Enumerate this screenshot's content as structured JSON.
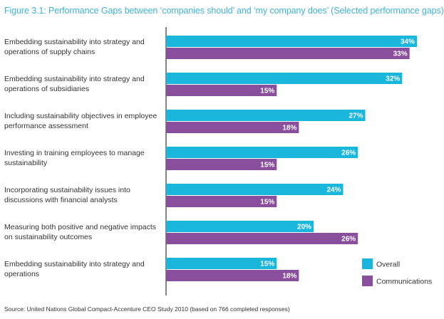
{
  "title": "Figure 3.1: Performance Gaps between ‘companies should’ and ‘my company does’ (Selected performance gaps)",
  "source": "Source: United Nations Global Compact-Accenture CEO Study 2010 (based on 766 completed responses)",
  "colors": {
    "overall": "#1bb6dc",
    "communications": "#8a4f9c",
    "title": "#3fb3d6",
    "axis": "#333333"
  },
  "chart_data": {
    "type": "bar",
    "orientation": "horizontal",
    "title": "Figure 3.1: Performance Gaps between ‘companies should’ and ‘my company does’ (Selected performance gaps)",
    "categories": [
      [
        "Embedding sustainability into strategy and",
        "operations of supply chains"
      ],
      [
        "Embedding sustainability into strategy and",
        "operations of subsidiaries"
      ],
      [
        "Including sustainability objectives in employee",
        "performance assessment"
      ],
      [
        "Investing in training employees to manage",
        "sustainability"
      ],
      [
        "Incorporating sustainability issues into",
        "discussions with financial analysts"
      ],
      [
        "Measuring both positive and negative impacts",
        "on sustainability outcomes"
      ],
      [
        "Embedding sustainability into strategy and",
        "operations"
      ]
    ],
    "series": [
      {
        "name": "Overall",
        "values": [
          34,
          32,
          27,
          26,
          24,
          20,
          15
        ],
        "labels": [
          "34%",
          "32%",
          "27%",
          "26%",
          "24%",
          "20%",
          "15%"
        ]
      },
      {
        "name": "Communications",
        "values": [
          33,
          15,
          18,
          15,
          15,
          26,
          18
        ],
        "labels": [
          "33%",
          "15%",
          "18%",
          "15%",
          "15%",
          "26%",
          "18%"
        ]
      }
    ],
    "xlim": [
      0,
      34
    ],
    "legend_position": "bottom-right",
    "grid": false
  }
}
